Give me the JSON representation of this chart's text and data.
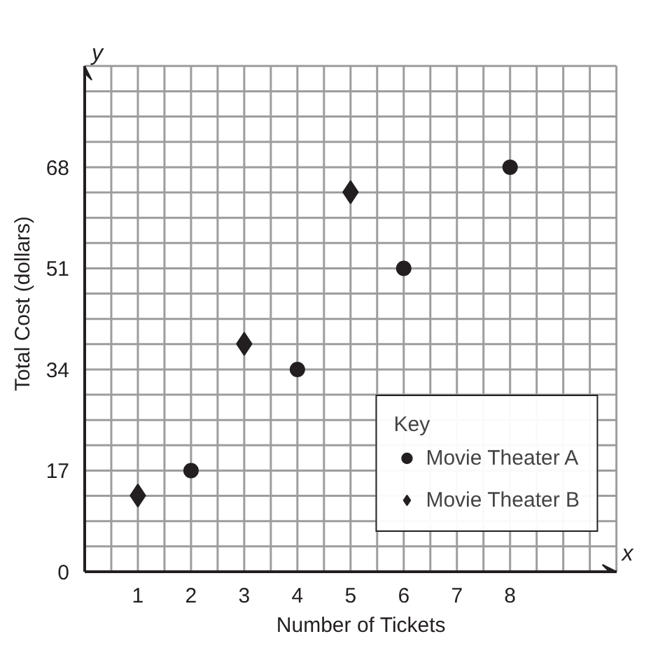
{
  "chart_data": {
    "type": "scatter",
    "xlabel": "Number of Tickets",
    "ylabel": "Total Cost (dollars)",
    "legend_title": "Key",
    "annotations": [
      "x",
      "y"
    ],
    "xlim": [
      0,
      10
    ],
    "ylim": [
      0,
      85
    ],
    "xticks": [
      1,
      2,
      3,
      4,
      5,
      6,
      7,
      8
    ],
    "yticks": [
      0,
      17,
      34,
      51,
      68
    ],
    "grid": true,
    "legend": "bottom right",
    "series": [
      {
        "name": "Movie Theater A",
        "color": "#231f20",
        "marker": "circle",
        "x": [
          2,
          4,
          6,
          8
        ],
        "values": [
          17,
          34,
          51,
          68
        ]
      },
      {
        "name": "Movie Theater B",
        "color": "#231f20",
        "marker": "diamond",
        "x": [
          1,
          3,
          5
        ],
        "values": [
          12.8,
          38.3,
          63.8
        ]
      }
    ]
  }
}
